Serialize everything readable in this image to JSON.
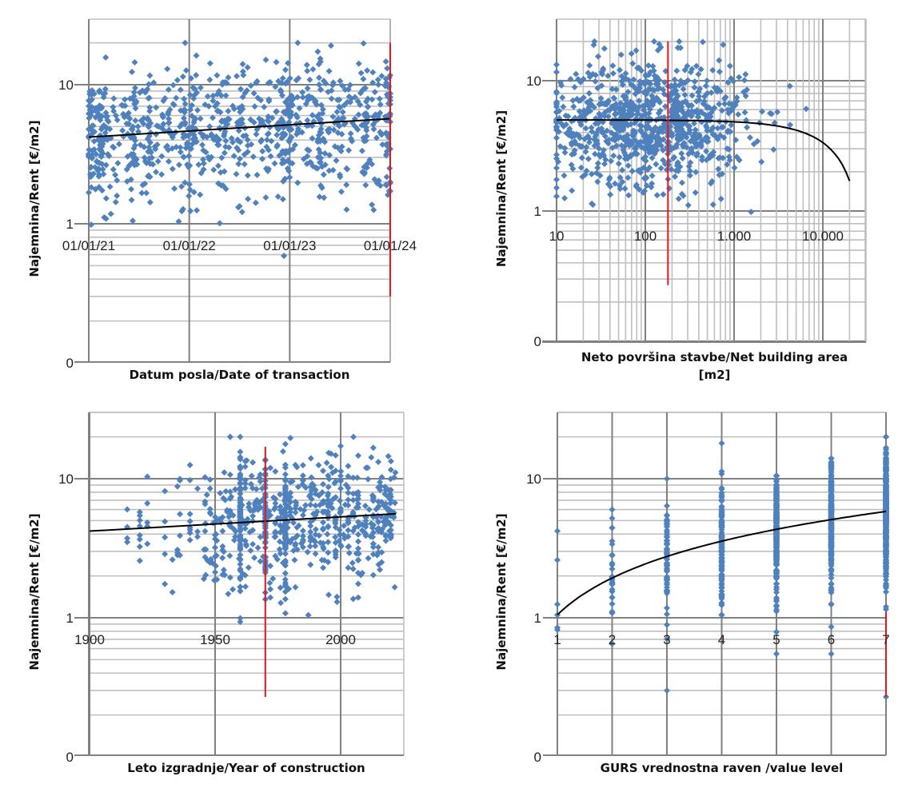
{
  "chart_data": [
    {
      "id": "date",
      "type": "scatter",
      "title": "",
      "xlabel": "Datum posla/Date of transaction",
      "ylabel": "Najemnina/Rent [€/m2]",
      "xscale": "linear-date",
      "yscale": "log",
      "xlim": [
        "2021-01-01",
        "2024-01-01"
      ],
      "ylim": [
        0.1,
        30
      ],
      "x_tick_labels": [
        "01/01/21",
        "01/01/22",
        "01/01/23",
        "01/01/24"
      ],
      "y_tick_labels": [
        "0",
        "1",
        "10"
      ],
      "y_tick_values": [
        0.1,
        1,
        10
      ],
      "grid": true,
      "trendline": {
        "x": [
          0,
          3
        ],
        "y": [
          4.2,
          5.7
        ]
      },
      "reference_line": {
        "x": 3,
        "y_range": [
          0.3,
          20
        ]
      },
      "points": {
        "x_unit": "years since 2021-01-01",
        "cluster_x": [
          0,
          0.02,
          0.1,
          0.15,
          0.45,
          0.6,
          0.95,
          1.0,
          1.05,
          1.3,
          1.5,
          1.8,
          1.95,
          2.0,
          2.3,
          2.5,
          2.75,
          2.97,
          3.0
        ],
        "y_range": [
          0.3,
          20
        ],
        "count_approx": 900
      }
    },
    {
      "id": "area",
      "type": "scatter",
      "title": "",
      "xlabel": "Neto površina  stavbe/Net building  area [m2]",
      "ylabel": "Najemnina/Rent [€/m2]",
      "xscale": "log",
      "yscale": "log",
      "xlim": [
        10,
        30000
      ],
      "ylim": [
        0.1,
        30
      ],
      "x_tick_labels": [
        "10",
        "100",
        "1.000",
        "10.000"
      ],
      "x_tick_values": [
        10,
        100,
        1000,
        10000
      ],
      "y_tick_labels": [
        "0",
        "1",
        "10"
      ],
      "y_tick_values": [
        0.1,
        1,
        10
      ],
      "grid": true,
      "trendline": {
        "x": [
          10,
          100,
          1000,
          3000,
          10000,
          20000
        ],
        "y": [
          5.0,
          5.0,
          4.8,
          4.4,
          3.0,
          1.7
        ]
      },
      "reference_line": {
        "x": 180,
        "y_range": [
          0.27,
          20
        ]
      },
      "points": {
        "x_range": [
          10,
          20000
        ],
        "y_range": [
          0.27,
          20
        ],
        "count_approx": 900
      }
    },
    {
      "id": "year",
      "type": "scatter",
      "title": "",
      "xlabel": "Leto izgradnje/Year of construction",
      "ylabel": "Najemnina/Rent [€/m2]",
      "xscale": "linear",
      "yscale": "log",
      "xlim": [
        1900,
        2025
      ],
      "ylim": [
        0.1,
        30
      ],
      "x_tick_labels": [
        "1900",
        "1950",
        "2000"
      ],
      "x_tick_values": [
        1900,
        1950,
        2000
      ],
      "y_tick_labels": [
        "0",
        "1",
        "10"
      ],
      "y_tick_values": [
        0.1,
        1,
        10
      ],
      "grid": true,
      "trendline": {
        "x": [
          1900,
          2022
        ],
        "y": [
          4.2,
          5.6
        ]
      },
      "reference_line": {
        "x": 1970,
        "y_range": [
          0.27,
          17
        ]
      },
      "points": {
        "columns": [
          1900,
          1908,
          1915,
          1920,
          1923,
          1930,
          1933,
          1935,
          1936,
          1940,
          1943,
          1946,
          1948,
          1950,
          1953,
          1956,
          1958,
          1960,
          1962,
          1965,
          1968,
          1970,
          1972,
          1974,
          1976,
          1978,
          1980,
          1982,
          1985,
          1988,
          1990,
          1993,
          1995,
          1998,
          2000,
          2003,
          2005,
          2007,
          2010,
          2013,
          2015,
          2018,
          2020
        ],
        "y_range": [
          0.27,
          20
        ],
        "count_approx": 800
      }
    },
    {
      "id": "level",
      "type": "scatter",
      "title": "",
      "xlabel": "GURS vrednostna raven /value level",
      "ylabel": "Najemnina/Rent [€/m2]",
      "xscale": "linear",
      "yscale": "log",
      "xlim": [
        1,
        7
      ],
      "ylim": [
        0.1,
        30
      ],
      "x_tick_labels": [
        "1",
        "2",
        "3",
        "4",
        "5",
        "6",
        "7"
      ],
      "x_tick_values": [
        1,
        2,
        3,
        4,
        5,
        6,
        7
      ],
      "y_tick_labels": [
        "0",
        "1",
        "10"
      ],
      "y_tick_values": [
        0.1,
        1,
        10
      ],
      "grid": true,
      "trendline": {
        "x": [
          1,
          2,
          3,
          4,
          5,
          6,
          7
        ],
        "y": [
          1.05,
          1.8,
          2.6,
          3.4,
          4.2,
          5.0,
          5.8
        ]
      },
      "reference_line": {
        "x": 7,
        "y_range": [
          0.27,
          1.1
        ]
      },
      "points": {
        "1": {
          "y": [
            4.2,
            2.6,
            1.25,
            1.05,
            0.85,
            0.82
          ]
        },
        "2": {
          "y_range": [
            0.65,
            6.0
          ]
        },
        "3": {
          "y_range": [
            0.3,
            10
          ]
        },
        "4": {
          "y_range": [
            1.05,
            18
          ]
        },
        "5": {
          "y_range": [
            0.55,
            10.5
          ]
        },
        "6": {
          "y_range": [
            0.55,
            14
          ]
        },
        "7": {
          "y_range": [
            0.27,
            20
          ]
        }
      }
    }
  ],
  "colors": {
    "point": "#4f81bd",
    "trend": "#000000",
    "reference": "#e8141b",
    "grid": "#bfbfbf",
    "grid_major": "#808080"
  }
}
